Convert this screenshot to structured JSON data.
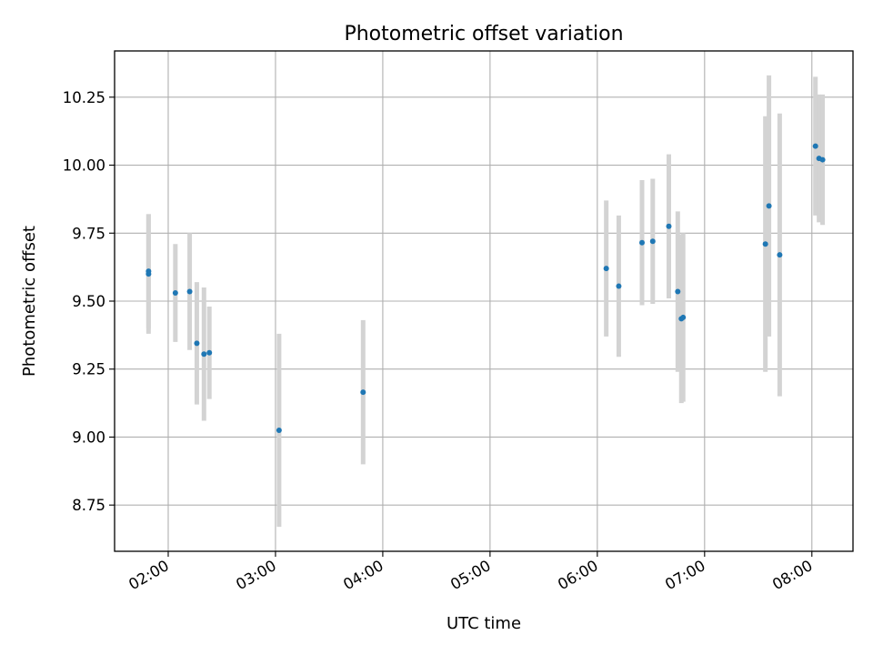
{
  "chart_data": {
    "type": "scatter",
    "title": "Photometric offset variation",
    "xlabel": "UTC time",
    "ylabel": "Photometric offset",
    "x_ticks": [
      "02:00",
      "03:00",
      "04:00",
      "05:00",
      "06:00",
      "07:00",
      "08:00"
    ],
    "y_ticks": [
      "8.75",
      "9.00",
      "9.25",
      "9.50",
      "9.75",
      "10.00",
      "10.25"
    ],
    "xlim": [
      "01:30",
      "08:23"
    ],
    "ylim": [
      8.58,
      10.42
    ],
    "grid": true,
    "colors": {
      "point": "#1f77b4",
      "errorbar": "#d3d3d3",
      "grid": "#b0b0b0"
    },
    "points": [
      {
        "x": "01:49",
        "y": 9.6,
        "err": 0.22
      },
      {
        "x": "01:49",
        "y": 9.61,
        "err": 0.21
      },
      {
        "x": "02:04",
        "y": 9.53,
        "err": 0.18
      },
      {
        "x": "02:12",
        "y": 9.535,
        "err": 0.215
      },
      {
        "x": "02:16",
        "y": 9.345,
        "err": 0.225
      },
      {
        "x": "02:20",
        "y": 9.305,
        "err": 0.245
      },
      {
        "x": "02:23",
        "y": 9.31,
        "err": 0.17
      },
      {
        "x": "03:02",
        "y": 9.025,
        "err": 0.355
      },
      {
        "x": "03:49",
        "y": 9.165,
        "err": 0.265
      },
      {
        "x": "06:05",
        "y": 9.62,
        "err": 0.25
      },
      {
        "x": "06:12",
        "y": 9.555,
        "err": 0.26
      },
      {
        "x": "06:25",
        "y": 9.715,
        "err": 0.23
      },
      {
        "x": "06:31",
        "y": 9.72,
        "err": 0.23
      },
      {
        "x": "06:40",
        "y": 9.775,
        "err": 0.265
      },
      {
        "x": "06:45",
        "y": 9.535,
        "err": 0.295
      },
      {
        "x": "06:47",
        "y": 9.435,
        "err": 0.31
      },
      {
        "x": "06:48",
        "y": 9.44,
        "err": 0.31
      },
      {
        "x": "07:34",
        "y": 9.71,
        "err": 0.47
      },
      {
        "x": "07:36",
        "y": 9.85,
        "err": 0.48
      },
      {
        "x": "07:42",
        "y": 9.67,
        "err": 0.52
      },
      {
        "x": "08:02",
        "y": 10.07,
        "err": 0.255
      },
      {
        "x": "08:04",
        "y": 10.025,
        "err": 0.235
      },
      {
        "x": "08:06",
        "y": 10.02,
        "err": 0.24
      }
    ]
  }
}
